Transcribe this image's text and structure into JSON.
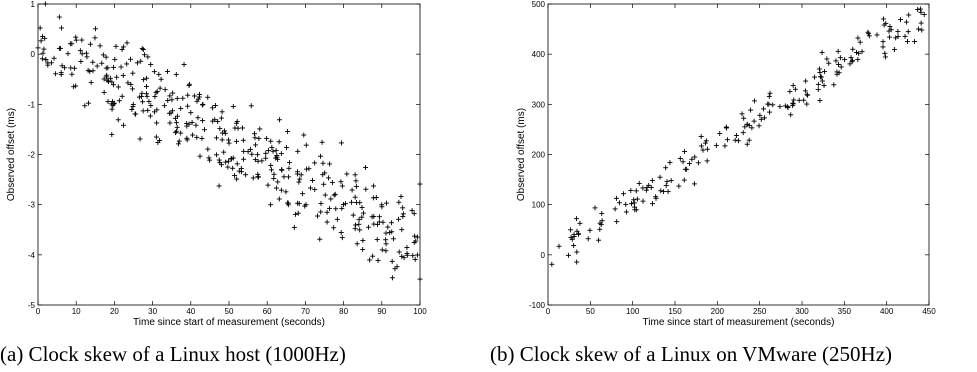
{
  "chart_data": [
    {
      "type": "scatter",
      "title": "",
      "xlabel": "Time since start of measurement (seconds)",
      "ylabel": "Observed offset (ms)",
      "xlim": [
        0,
        100
      ],
      "ylim": [
        -5,
        1
      ],
      "xticks": [
        "0",
        "10",
        "20",
        "30",
        "40",
        "50",
        "60",
        "70",
        "80",
        "90",
        "100"
      ],
      "yticks": [
        "-5",
        "-4",
        "-3",
        "-2",
        "-1",
        "0",
        "1"
      ],
      "marker": "+",
      "color": "#000000",
      "grid": false,
      "caption": "(a) Clock skew of a Linux host (1000Hz)",
      "trend": {
        "x": [
          0,
          100
        ],
        "y_center": [
          0.25,
          -3.75
        ],
        "spread": 0.9,
        "points": 420
      }
    },
    {
      "type": "scatter",
      "title": "",
      "xlabel": "Time since start of measurement (seconds)",
      "ylabel": "Observed offset (ms)",
      "xlim": [
        0,
        450
      ],
      "ylim": [
        -100,
        500
      ],
      "xticks": [
        "0",
        "50",
        "100",
        "150",
        "200",
        "250",
        "300",
        "350",
        "400",
        "450"
      ],
      "yticks": [
        "-100",
        "0",
        "100",
        "200",
        "300",
        "400",
        "500"
      ],
      "marker": "+",
      "color": "#000000",
      "grid": false,
      "caption": "(b) Clock skew of a Linux on VMware (250Hz)",
      "trend": {
        "x": [
          0,
          445
        ],
        "y_center": [
          0,
          485
        ],
        "spread": 40,
        "points": 200
      }
    }
  ]
}
